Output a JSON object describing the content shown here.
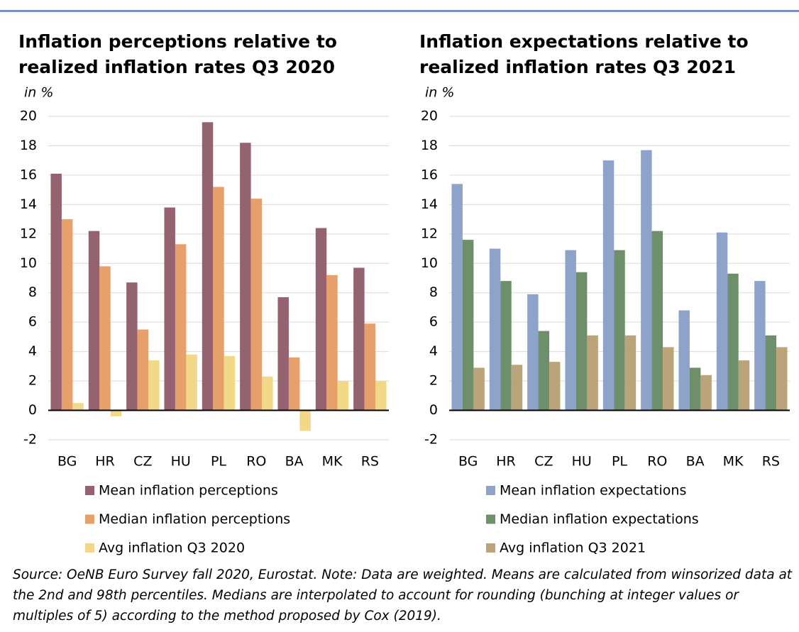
{
  "chart_data": [
    {
      "type": "bar",
      "title": [
        "Inflation perceptions relative to",
        "realized inflation rates Q3 2020"
      ],
      "subtitle": "in %",
      "categories": [
        "BG",
        "HR",
        "CZ",
        "HU",
        "PL",
        "RO",
        "BA",
        "MK",
        "RS"
      ],
      "series": [
        {
          "name": "Mean inflation perceptions",
          "color": "#956270",
          "values": [
            16.1,
            12.2,
            8.7,
            13.8,
            19.6,
            18.2,
            7.7,
            12.4,
            9.7
          ]
        },
        {
          "name": "Median inflation perceptions",
          "color": "#e8a06a",
          "values": [
            13.0,
            9.8,
            5.5,
            11.3,
            15.2,
            14.4,
            3.6,
            9.2,
            5.9
          ]
        },
        {
          "name": "Avg inflation Q3 2020",
          "color": "#f2d98a",
          "values": [
            0.5,
            -0.4,
            3.4,
            3.8,
            3.7,
            2.3,
            -1.4,
            2.0,
            2.0
          ]
        }
      ],
      "ylim": [
        -2,
        20
      ],
      "yticks": [
        -2,
        0,
        2,
        4,
        6,
        8,
        10,
        12,
        14,
        16,
        18,
        20
      ],
      "grid": true
    },
    {
      "type": "bar",
      "title": [
        "Inflation expectations relative to",
        "realized inflation rates Q3 2021"
      ],
      "subtitle": "in %",
      "categories": [
        "BG",
        "HR",
        "CZ",
        "HU",
        "PL",
        "RO",
        "BA",
        "MK",
        "RS"
      ],
      "series": [
        {
          "name": "Mean inflation expectations",
          "color": "#8ea3c9",
          "values": [
            15.4,
            11.0,
            7.9,
            10.9,
            17.0,
            17.7,
            6.8,
            12.1,
            8.8
          ]
        },
        {
          "name": "Median inflation expectations",
          "color": "#6f8f6b",
          "values": [
            11.6,
            8.8,
            5.4,
            9.4,
            10.9,
            12.2,
            2.9,
            9.3,
            5.1
          ]
        },
        {
          "name": "Avg inflation Q3 2021",
          "color": "#bca47a",
          "values": [
            2.9,
            3.1,
            3.3,
            5.1,
            5.1,
            4.3,
            2.4,
            3.4,
            4.3
          ]
        }
      ],
      "ylim": [
        -2,
        20
      ],
      "yticks": [
        -2,
        0,
        2,
        4,
        6,
        8,
        10,
        12,
        14,
        16,
        18,
        20
      ],
      "grid": true
    }
  ],
  "footnote": "Source: OeNB Euro Survey fall 2020, Eurostat. Note: Data are weighted. Means are calculated from winsorized data at the 2nd and 98th percentiles. Medians are interpolated to account for rounding (bunching at integer values or multiples of 5) according to the method proposed by Cox (2019)."
}
